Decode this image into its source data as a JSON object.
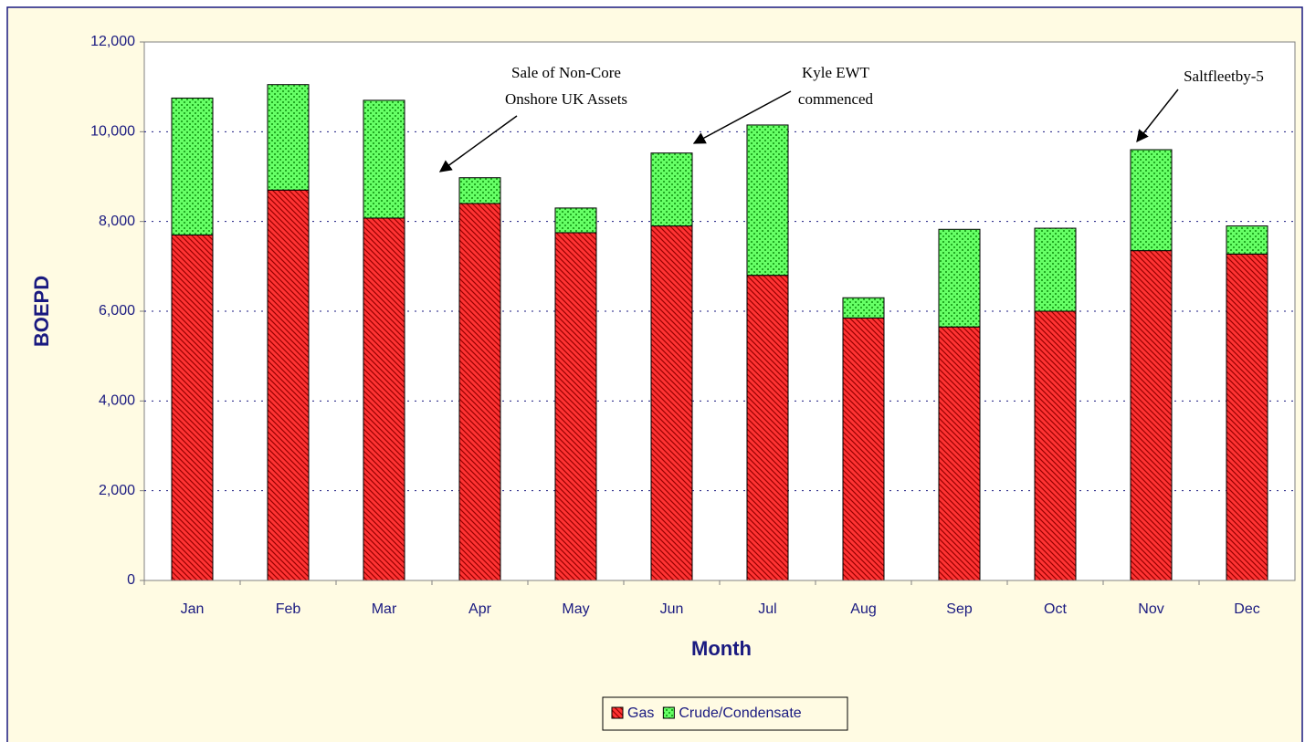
{
  "chart_data": {
    "type": "stacked_bar",
    "x_label": "Month",
    "y_label": "BOEPD",
    "categories": [
      "Jan",
      "Feb",
      "Mar",
      "Apr",
      "May",
      "Jun",
      "Jul",
      "Aug",
      "Sep",
      "Oct",
      "Nov",
      "Dec"
    ],
    "series": [
      {
        "name": "Gas",
        "color": "#ff3333",
        "values": [
          7700,
          8700,
          8075,
          8400,
          7750,
          7900,
          6800,
          5850,
          5650,
          6000,
          7350,
          7275
        ]
      },
      {
        "name": "Crude/Condensate",
        "color": "#66ff66",
        "values": [
          3050,
          2350,
          2625,
          575,
          550,
          1625,
          3350,
          450,
          2175,
          1850,
          2250,
          625
        ]
      }
    ],
    "ylim": [
      0,
      12000
    ],
    "yticks": [
      0,
      {
        "value": 2000,
        "label": "2,000"
      },
      {
        "value": 4000,
        "label": "4,000"
      },
      {
        "value": 6000,
        "label": "6,000"
      },
      {
        "value": 8000,
        "label": "8,000"
      },
      {
        "value": 10000,
        "label": "10,000"
      },
      {
        "value": 12000,
        "label": "12,000"
      }
    ],
    "grid": true,
    "legend": "bottom",
    "annotations": [
      {
        "text": [
          "Sale of Non-Core",
          "Onshore UK Assets"
        ]
      },
      {
        "text": [
          "Kyle EWT",
          "commenced"
        ]
      },
      {
        "text": [
          "Saltfleetby-5"
        ]
      }
    ]
  }
}
